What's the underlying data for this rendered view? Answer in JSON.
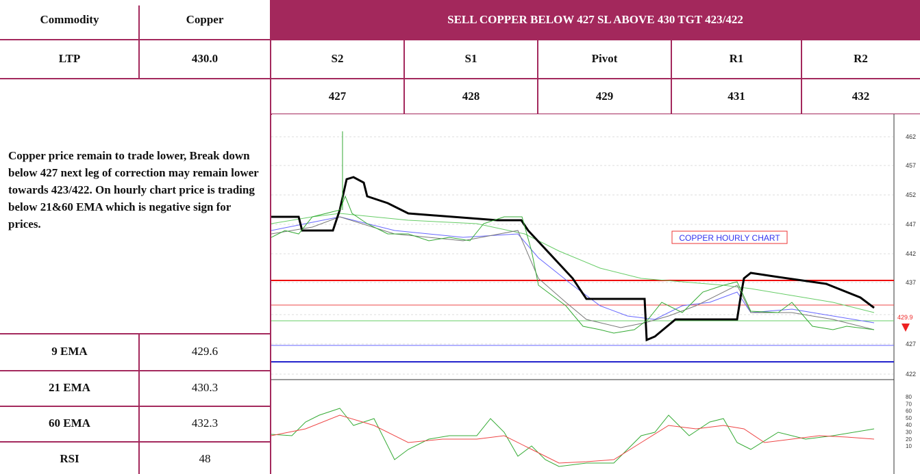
{
  "header": {
    "commodity_label": "Commodity",
    "commodity": "Copper",
    "signal": "SELL COPPER BELOW 427 SL ABOVE 430 TGT 423/422"
  },
  "ltp": {
    "label": "LTP",
    "value": "430.0"
  },
  "levels": {
    "headers": [
      "S2",
      "S1",
      "Pivot",
      "R1",
      "R2"
    ],
    "values": [
      "427",
      "428",
      "429",
      "431",
      "432"
    ]
  },
  "commentary": "Copper price remain to trade lower, Break down below 427 next leg of correction may remain lower towards 423/422. On hourly chart price is trading below 21&60 EMA which is negative sign for prices.",
  "indicators": [
    {
      "label": "9 EMA",
      "value": "429.6"
    },
    {
      "label": "21 EMA",
      "value": "430.3"
    },
    {
      "label": "60 EMA",
      "value": "432.3"
    },
    {
      "label": "RSI",
      "value": "48"
    }
  ],
  "chart": {
    "label": "COPPER HOURLY CHART",
    "price_marker": "429.9",
    "price_axis": [
      "462",
      "457",
      "452",
      "447",
      "442",
      "437",
      "427",
      "422"
    ],
    "rsi_axis": [
      "80",
      "70",
      "60",
      "50",
      "40",
      "30",
      "20",
      "10"
    ]
  }
}
